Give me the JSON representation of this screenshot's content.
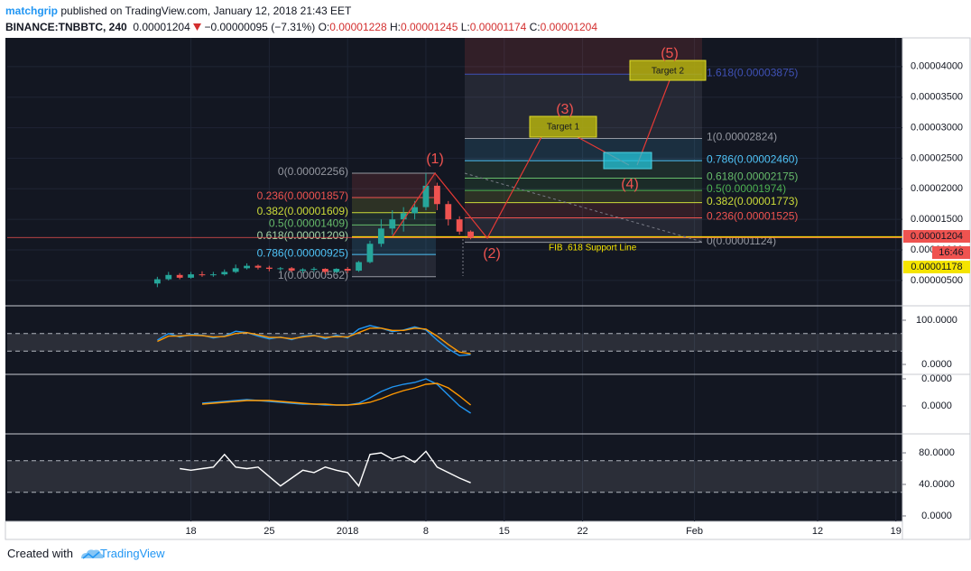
{
  "header": {
    "author": "matchgrip",
    "published": "published on TradingView.com, January 12, 2018 21:43 EET",
    "symbol": "BINANCE:TNBBTC, 240",
    "last": "0.00001204",
    "change": "−0.00000095 (−7.31%)",
    "ohlc": [
      {
        "key": "O:",
        "val": "0.00001228"
      },
      {
        "key": "H:",
        "val": "0.00001245"
      },
      {
        "key": "L:",
        "val": "0.00001174"
      },
      {
        "key": "C:",
        "val": "0.00001204"
      }
    ]
  },
  "chart_data": {
    "type": "candlestick",
    "x": [
      "2017-12-15",
      "2017-12-16",
      "2017-12-17",
      "2017-12-18",
      "2017-12-19",
      "2017-12-20",
      "2017-12-21",
      "2017-12-22",
      "2017-12-23",
      "2017-12-24",
      "2017-12-25",
      "2017-12-26",
      "2017-12-27",
      "2017-12-28",
      "2017-12-29",
      "2017-12-30",
      "2017-12-31",
      "2018-01-01",
      "2018-01-02",
      "2018-01-03",
      "2018-01-04",
      "2018-01-05",
      "2018-01-06",
      "2018-01-07",
      "2018-01-08",
      "2018-01-09",
      "2018-01-10",
      "2018-01-11",
      "2018-01-12"
    ],
    "open": [
      4.5e-06,
      5.2e-06,
      5.9e-06,
      5.45e-06,
      6e-06,
      5.85e-06,
      6e-06,
      6.4e-06,
      7e-06,
      7.4e-06,
      7.1e-06,
      6.9e-06,
      7e-06,
      6.6e-06,
      6.8e-06,
      6.9e-06,
      6.4e-06,
      6.9e-06,
      6.6e-06,
      8e-06,
      1.1e-05,
      1.35e-05,
      1.5e-05,
      1.6e-05,
      1.7e-05,
      2.05e-05,
      1.75e-05,
      1.5e-05,
      1.3e-05
    ],
    "high": [
      5.6e-06,
      6.4e-06,
      6.2e-06,
      6.4e-06,
      6.5e-06,
      6.4e-06,
      6.8e-06,
      7.6e-06,
      7.8e-06,
      7.6e-06,
      7.4e-06,
      7.2e-06,
      7.2e-06,
      7e-06,
      7.2e-06,
      7e-06,
      7e-06,
      7.2e-06,
      8.2e-06,
      1.15e-05,
      1.5e-05,
      1.65e-05,
      1.7e-05,
      1.8e-05,
      2.256e-05,
      2.1e-05,
      1.8e-05,
      1.55e-05,
      1.32e-05
    ],
    "low": [
      3.9e-06,
      5e-06,
      5.2e-06,
      5.3e-06,
      5.6e-06,
      5.6e-06,
      5.8e-06,
      6.2e-06,
      6.8e-06,
      6.8e-06,
      6.5e-06,
      6.6e-06,
      6.4e-06,
      6.2e-06,
      6.4e-06,
      6e-06,
      6.2e-06,
      6.2e-06,
      6.4e-06,
      7.8e-06,
      1.05e-05,
      1.25e-05,
      1.3e-05,
      1.5e-05,
      1.65e-05,
      1.65e-05,
      1.4e-05,
      1.25e-05,
      1.174e-05
    ],
    "close": [
      5.2e-06,
      5.9e-06,
      5.45e-06,
      6e-06,
      5.85e-06,
      6e-06,
      6.4e-06,
      7e-06,
      7.4e-06,
      7.1e-06,
      6.9e-06,
      7e-06,
      6.6e-06,
      6.8e-06,
      6.9e-06,
      6.4e-06,
      6.9e-06,
      6.6e-06,
      8e-06,
      1.1e-05,
      1.35e-05,
      1.5e-05,
      1.6e-05,
      1.7e-05,
      2.05e-05,
      1.75e-05,
      1.5e-05,
      1.3e-05,
      1.204e-05
    ],
    "up_color": "#26a69a",
    "down_color": "#ef5350",
    "xlim": [
      "2017-12-01T14:00Z",
      "2018-02-19T14:00Z"
    ],
    "xticks": [
      {
        "value": "2017-12-18",
        "label": "18"
      },
      {
        "value": "2017-12-25",
        "label": "25"
      },
      {
        "value": "2018-01-01",
        "label": "2018"
      },
      {
        "value": "2018-01-08",
        "label": "8"
      },
      {
        "value": "2018-01-15",
        "label": "15"
      },
      {
        "value": "2018-01-22",
        "label": "22"
      },
      {
        "value": "2018-02-01",
        "label": "Feb"
      },
      {
        "value": "2018-02-12",
        "label": "12"
      },
      {
        "value": "2018-02-19",
        "label": "19"
      }
    ],
    "ylim": [
      1e-06,
      4.47e-05
    ],
    "yticks": [
      {
        "value": 5e-06,
        "label": "0.00000500"
      },
      {
        "value": 1e-05,
        "label": "0.00001000"
      },
      {
        "value": 1.5e-05,
        "label": "0.00001500"
      },
      {
        "value": 2e-05,
        "label": "0.00002000"
      },
      {
        "value": 2.5e-05,
        "label": "0.00002500"
      },
      {
        "value": 3e-05,
        "label": "0.00003000"
      },
      {
        "value": 3.5e-05,
        "label": "0.00003500"
      },
      {
        "value": 4e-05,
        "label": "0.00004000"
      }
    ],
    "fib_left": [
      {
        "value": 2.256e-05,
        "label": "0(0.00002256)",
        "color": "#9598a1"
      },
      {
        "value": 1.857e-05,
        "label": "0.236(0.00001857)",
        "color": "#ef5350"
      },
      {
        "value": 1.609e-05,
        "label": "0.382(0.00001609)",
        "color": "#cddc39"
      },
      {
        "value": 1.409e-05,
        "label": "0.5(0.00001409)",
        "color": "#66bb6a"
      },
      {
        "value": 1.209e-05,
        "label": "0.618(0.00001209)",
        "color": "#a5d6a7"
      },
      {
        "value": 9.25e-06,
        "label": "0.786(0.00000925)",
        "color": "#4fc3f7"
      },
      {
        "value": 5.62e-06,
        "label": "1(0.00000562)",
        "color": "#9598a1"
      }
    ],
    "fib_right": [
      {
        "value": 3.875e-05,
        "label": "1.618(0.00003875)",
        "color": "#3f51b5"
      },
      {
        "value": 2.824e-05,
        "label": "1(0.00002824)",
        "color": "#9598a1"
      },
      {
        "value": 2.46e-05,
        "label": "0.786(0.00002460)",
        "color": "#4fc3f7"
      },
      {
        "value": 2.175e-05,
        "label": "0.618(0.00002175)",
        "color": "#66bb6a"
      },
      {
        "value": 1.974e-05,
        "label": "0.5(0.00001974)",
        "color": "#4caf50"
      },
      {
        "value": 1.773e-05,
        "label": "0.382(0.00001773)",
        "color": "#cddc39"
      },
      {
        "value": 1.525e-05,
        "label": "0.236(0.00001525)",
        "color": "#ef5350"
      },
      {
        "value": 1.124e-05,
        "label": "0(0.00001124)",
        "color": "#9598a1"
      }
    ],
    "annotations": {
      "waves": [
        "(1)",
        "(2)",
        "(3)",
        "(4)",
        "(5)"
      ],
      "targets": [
        "Target 1",
        "Target 2"
      ],
      "support": "FIB .618 Support Line"
    },
    "price_badges": [
      {
        "label": "0.00001204",
        "color": "#ef5350"
      },
      {
        "label": "16:46",
        "color": "#ef5350"
      },
      {
        "label": "0.00001178",
        "color": "#f5e400"
      }
    ],
    "indicators": [
      {
        "type": "line",
        "ylim": [
          -18.4,
          130.6
        ],
        "yticks": [
          {
            "value": 100,
            "label": "100.0000"
          },
          {
            "value": 0,
            "label": "0.0000"
          }
        ],
        "band": [
          30,
          70
        ],
        "series": [
          {
            "color": "#2196f3",
            "values": [
              55,
              70,
              62,
              68,
              66,
              60,
              64,
              75,
              72,
              64,
              58,
              62,
              56,
              64,
              66,
              58,
              66,
              60,
              80,
              88,
              82,
              74,
              78,
              85,
              78,
              55,
              35,
              20,
              22
            ]
          },
          {
            "color": "#ff9800",
            "values": [
              52,
              64,
              64,
              66,
              65,
              62,
              63,
              70,
              72,
              67,
              61,
              61,
              58,
              62,
              65,
              61,
              63,
              62,
              72,
              82,
              82,
              77,
              77,
              82,
              80,
              64,
              45,
              28,
              24
            ]
          }
        ]
      },
      {
        "type": "line",
        "ylim": [
          -3e-07,
          3.5e-07
        ],
        "yticks": [
          {
            "value": 3e-07,
            "label": "0.0000"
          },
          {
            "value": 0,
            "label": "0.0000"
          }
        ],
        "series": [
          {
            "color": "#2196f3",
            "values": [
              null,
              null,
              null,
              null,
              3e-08,
              4e-08,
              5e-08,
              6e-08,
              7e-08,
              6e-08,
              5e-08,
              4e-08,
              3e-08,
              2e-08,
              2e-08,
              1e-08,
              1e-08,
              1e-08,
              3e-08,
              9e-08,
              1.6e-07,
              2.1e-07,
              2.4e-07,
              2.6e-07,
              3e-07,
              2.4e-07,
              1.2e-07,
              0,
              -8e-08
            ]
          },
          {
            "color": "#ff9800",
            "values": [
              null,
              null,
              null,
              null,
              2e-08,
              3e-08,
              4e-08,
              5e-08,
              6e-08,
              6e-08,
              6e-08,
              5e-08,
              4e-08,
              3e-08,
              2e-08,
              2e-08,
              1e-08,
              1e-08,
              2e-08,
              4e-08,
              8e-08,
              1.3e-07,
              1.7e-07,
              2e-07,
              2.4e-07,
              2.5e-07,
              2e-07,
              1.1e-07,
              1e-08
            ]
          }
        ]
      },
      {
        "type": "line",
        "ylim": [
          -6.9,
          102.9
        ],
        "yticks": [
          {
            "value": 80,
            "label": "80.0000"
          },
          {
            "value": 40,
            "label": "40.0000"
          },
          {
            "value": 0,
            "label": "0.0000"
          }
        ],
        "band": [
          30,
          70
        ],
        "series": [
          {
            "color": "#ffffff",
            "values": [
              null,
              null,
              60,
              58,
              60,
              62,
              78,
              62,
              60,
              62,
              50,
              38,
              48,
              58,
              55,
              62,
              58,
              55,
              38,
              78,
              80,
              72,
              76,
              68,
              82,
              62,
              55,
              48,
              42
            ]
          }
        ]
      }
    ]
  },
  "footer": {
    "created": "Created with",
    "brand": "TradingView"
  }
}
